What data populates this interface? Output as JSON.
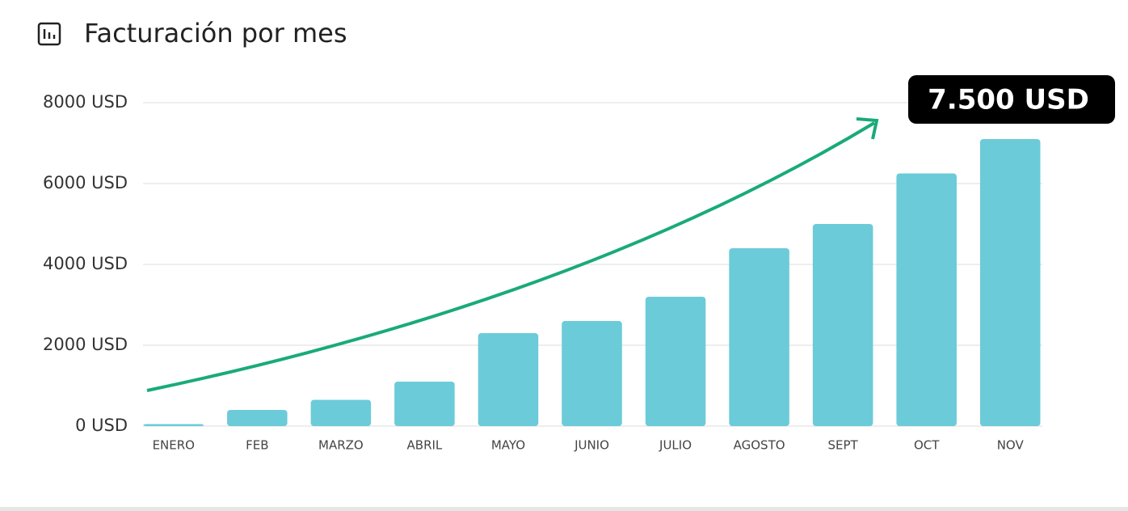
{
  "chart_data": {
    "type": "bar",
    "title": "Facturación por mes",
    "categories": [
      "ENERO",
      "FEB",
      "MARZO",
      "ABRIL",
      "MAYO",
      "JUNIO",
      "JULIO",
      "AGOSTO",
      "SEPT",
      "OCT",
      "NOV"
    ],
    "values": [
      50,
      400,
      650,
      1100,
      2300,
      2600,
      3200,
      4400,
      5000,
      6250,
      7100
    ],
    "color": "#6ccbd8",
    "ylim": [
      0,
      8000
    ],
    "yticks": [
      {
        "value": 0,
        "label": "0 USD"
      },
      {
        "value": 2000,
        "label": "2000 USD"
      },
      {
        "value": 4000,
        "label": "4000 USD"
      },
      {
        "value": 6000,
        "label": "6000 USD"
      },
      {
        "value": 8000,
        "label": "8000 USD"
      }
    ],
    "grid": true,
    "annotation": "7.500 USD"
  }
}
